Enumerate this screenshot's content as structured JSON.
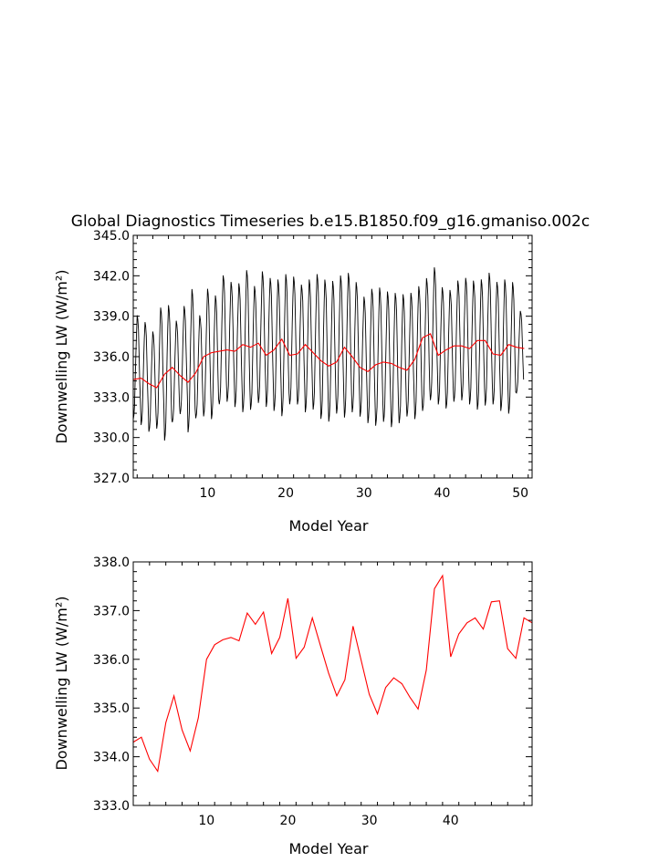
{
  "colors": {
    "background": "#ffffff",
    "axes": "#000000",
    "monthly_line": "#000000",
    "annual_line": "#ff0000"
  },
  "chart_data": [
    {
      "type": "line",
      "title": "Global Diagnostics Timeseries b.e15.B1850.f09_g16.gmaniso.002c",
      "xlabel": "Model Year",
      "ylabel": "Downwelling LW (W/m²)",
      "xlim": [
        0.5,
        51.5
      ],
      "ylim": [
        327.0,
        345.0
      ],
      "xticks": [
        10,
        20,
        30,
        40,
        50
      ],
      "yticks": [
        327.0,
        330.0,
        333.0,
        336.0,
        339.0,
        342.0,
        345.0
      ],
      "grid": false,
      "series": [
        {
          "color": "#000000",
          "note": "monthly values, seasonal cycle",
          "peaks": [
            339.2,
            338.7,
            338.0,
            339.8,
            340.0,
            338.8,
            339.9,
            341.2,
            339.2,
            341.2,
            340.7,
            342.2,
            341.7,
            341.6,
            342.6,
            341.4,
            342.5,
            342.0,
            341.9,
            342.3,
            342.1,
            341.5,
            341.9,
            342.3,
            341.9,
            341.8,
            342.2,
            342.4,
            341.7,
            340.6,
            341.2,
            341.3,
            341.0,
            340.9,
            340.8,
            340.9,
            341.4,
            342.0,
            342.8,
            341.3,
            341.1,
            341.8,
            342.0,
            341.8,
            341.9,
            342.4,
            341.7,
            341.9,
            341.7,
            339.5
          ],
          "troughs": [
            331.2,
            330.8,
            330.3,
            330.5,
            329.6,
            331.0,
            331.6,
            330.2,
            331.3,
            331.4,
            331.2,
            332.3,
            332.5,
            332.1,
            331.7,
            331.9,
            332.4,
            332.1,
            331.8,
            331.4,
            332.3,
            332.3,
            331.7,
            331.9,
            331.2,
            331.0,
            331.6,
            331.3,
            331.7,
            331.4,
            330.9,
            330.7,
            331.0,
            330.6,
            330.9,
            331.4,
            331.2,
            331.8,
            332.6,
            332.3,
            332.0,
            332.5,
            332.6,
            332.3,
            331.9,
            332.2,
            332.3,
            331.8,
            331.6,
            333.2
          ]
        },
        {
          "color": "#ff0000",
          "note": "annual mean",
          "x": [
            0.5,
            1.5,
            2.5,
            3.5,
            4.5,
            5.5,
            6.5,
            7.5,
            8.5,
            9.5,
            10.5,
            11.5,
            12.5,
            13.5,
            14.5,
            15.5,
            16.5,
            17.5,
            18.5,
            19.5,
            20.5,
            21.5,
            22.5,
            23.5,
            24.5,
            25.5,
            26.5,
            27.5,
            28.5,
            29.5,
            30.5,
            31.5,
            32.5,
            33.5,
            34.5,
            35.5,
            36.5,
            37.5,
            38.5,
            39.5,
            40.5,
            41.5,
            42.5,
            43.5,
            44.5,
            45.5,
            46.5,
            47.5,
            48.5,
            49.5,
            50.5
          ],
          "values": [
            334.3,
            334.4,
            334.0,
            333.7,
            334.7,
            335.2,
            334.6,
            334.1,
            334.8,
            336.0,
            336.3,
            336.4,
            336.5,
            336.4,
            336.9,
            336.7,
            337.0,
            336.1,
            336.5,
            337.3,
            336.1,
            336.2,
            336.9,
            336.3,
            335.7,
            335.3,
            335.6,
            336.7,
            336.0,
            335.2,
            334.9,
            335.4,
            335.6,
            335.5,
            335.2,
            335.0,
            335.8,
            337.4,
            337.7,
            336.1,
            336.5,
            336.8,
            336.8,
            336.6,
            337.2,
            337.2,
            336.2,
            336.1,
            336.9,
            336.7,
            336.6
          ]
        }
      ]
    },
    {
      "type": "line",
      "title": "",
      "xlabel": "Model Year",
      "ylabel": "Downwelling LW (W/m²)",
      "xlim": [
        1,
        50
      ],
      "ylim": [
        333.0,
        338.0
      ],
      "xticks": [
        10,
        20,
        30,
        40
      ],
      "yticks": [
        333.0,
        334.0,
        335.0,
        336.0,
        337.0,
        338.0
      ],
      "grid": false,
      "series": [
        {
          "color": "#ff0000",
          "x": [
            1,
            2,
            3,
            4,
            5,
            6,
            7,
            8,
            9,
            10,
            11,
            12,
            13,
            14,
            15,
            16,
            17,
            18,
            19,
            20,
            21,
            22,
            23,
            24,
            25,
            26,
            27,
            28,
            29,
            30,
            31,
            32,
            33,
            34,
            35,
            36,
            37,
            38,
            39,
            40,
            41,
            42,
            43,
            44,
            45,
            46,
            47,
            48,
            49,
            50
          ],
          "values": [
            334.3,
            334.4,
            333.95,
            333.7,
            334.7,
            335.25,
            334.55,
            334.12,
            334.8,
            336.0,
            336.3,
            336.4,
            336.45,
            336.38,
            336.95,
            336.72,
            336.97,
            336.12,
            336.45,
            337.25,
            336.02,
            336.25,
            336.85,
            336.28,
            335.72,
            335.25,
            335.58,
            336.68,
            335.98,
            335.28,
            334.88,
            335.42,
            335.62,
            335.5,
            335.22,
            334.98,
            335.78,
            337.45,
            337.72,
            336.05,
            336.52,
            336.75,
            336.85,
            336.62,
            337.18,
            337.2,
            336.22,
            336.02,
            336.85,
            336.75
          ]
        }
      ]
    }
  ]
}
